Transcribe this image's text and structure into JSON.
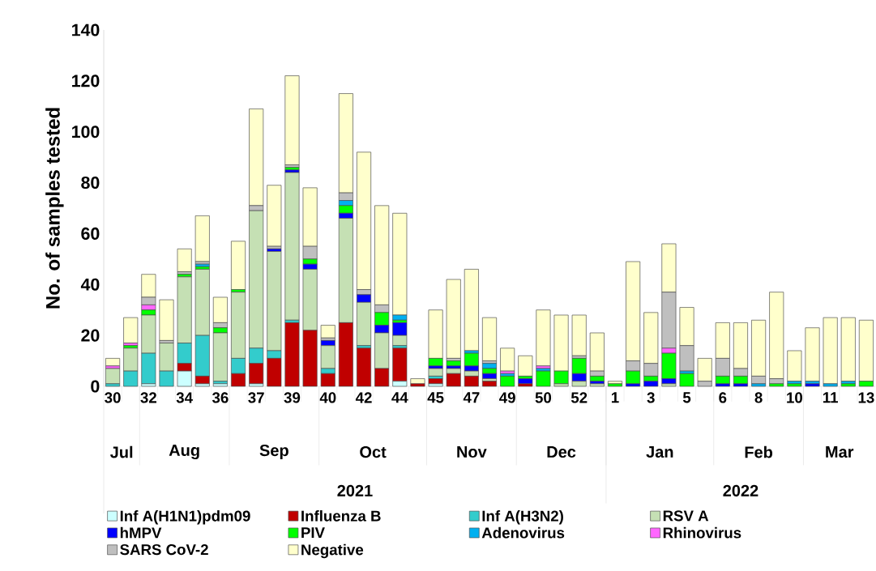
{
  "chart_data": {
    "type": "bar",
    "stacked": true,
    "ylabel": "No. of samples tested",
    "categories": [
      "30",
      null,
      "32",
      null,
      "34",
      null,
      "36",
      null,
      "37",
      null,
      "39",
      null,
      "40",
      null,
      "42",
      null,
      "44",
      null,
      "45",
      null,
      "47",
      null,
      "49",
      null,
      "50",
      null,
      "52",
      null,
      "1",
      null,
      "3",
      null,
      "5",
      null,
      "6",
      null,
      "8",
      null,
      "10",
      null,
      "11",
      null,
      "13"
    ],
    "ylim": [
      0,
      140
    ],
    "yticks": [
      0,
      20,
      40,
      60,
      80,
      100,
      120,
      140
    ],
    "legend": "bottom",
    "annotations": [
      "Jul",
      "Aug",
      "Sep",
      "Oct",
      "Nov",
      "Dec",
      "Jan",
      "Feb",
      "Mar",
      "2021",
      "2022"
    ],
    "series": [
      {
        "name": "Inf A(H1N1)pdm09",
        "color": "#ccffff",
        "values": [
          0,
          0,
          1,
          0,
          6,
          1,
          1,
          0,
          1,
          0,
          0,
          0,
          0,
          0,
          0,
          0,
          2,
          0,
          1,
          0,
          0,
          0,
          0,
          0,
          0,
          0,
          0,
          0,
          0,
          0,
          0,
          0,
          0,
          0,
          0,
          0,
          0,
          0,
          0,
          0,
          0,
          0,
          0
        ]
      },
      {
        "name": "Influenza B",
        "color": "#c00000",
        "values": [
          0,
          0,
          0,
          0,
          3,
          3,
          0,
          5,
          8,
          11,
          25,
          22,
          5,
          25,
          15,
          7,
          13,
          1,
          2,
          5,
          4,
          2,
          0,
          1,
          0,
          0,
          0,
          0,
          0,
          0,
          0,
          0,
          0,
          0,
          0,
          0,
          0,
          0,
          0,
          0,
          0,
          0,
          0
        ]
      },
      {
        "name": "Inf A(H3N2)",
        "color": "#33cccc",
        "values": [
          1,
          6,
          12,
          6,
          8,
          16,
          1,
          6,
          6,
          3,
          1,
          0,
          2,
          0,
          1,
          0,
          1,
          0,
          1,
          0,
          0,
          0,
          0,
          0,
          0,
          0,
          0,
          0,
          0,
          0,
          0,
          0,
          0,
          0,
          0,
          0,
          0,
          0,
          0,
          0,
          0,
          0,
          0
        ]
      },
      {
        "name": "RSV A",
        "color": "#c5e0b4",
        "values": [
          6,
          9,
          15,
          11,
          26,
          26,
          19,
          26,
          54,
          39,
          58,
          24,
          9,
          41,
          17,
          14,
          4,
          0,
          3,
          2,
          2,
          1,
          0,
          0,
          0,
          1,
          2,
          1,
          0,
          0,
          0,
          1,
          0,
          0,
          0,
          0,
          0,
          0,
          0,
          0,
          0,
          0,
          0
        ]
      },
      {
        "name": "hMPV",
        "color": "#0000ff",
        "values": [
          0,
          0,
          0,
          0,
          0,
          0,
          0,
          0,
          0,
          1,
          1,
          2,
          2,
          2,
          3,
          3,
          5,
          0,
          1,
          1,
          2,
          2,
          0,
          2,
          0,
          0,
          3,
          1,
          0,
          1,
          2,
          2,
          0,
          0,
          1,
          1,
          0,
          0,
          0,
          1,
          0,
          0,
          0
        ]
      },
      {
        "name": "PIV",
        "color": "#00ff00",
        "values": [
          0,
          1,
          2,
          0,
          1,
          1,
          2,
          1,
          0,
          0,
          1,
          2,
          0,
          3,
          0,
          5,
          1,
          0,
          3,
          2,
          5,
          2,
          4,
          1,
          6,
          5,
          6,
          2,
          1,
          5,
          2,
          10,
          5,
          0,
          3,
          3,
          0,
          1,
          1,
          0,
          0,
          1,
          2
        ]
      },
      {
        "name": "Adenovirus",
        "color": "#00b0f0",
        "values": [
          0,
          0,
          0,
          0,
          0,
          1,
          0,
          0,
          0,
          0,
          0,
          0,
          0,
          2,
          0,
          0,
          2,
          0,
          0,
          0,
          1,
          2,
          1,
          0,
          1,
          0,
          0,
          0,
          0,
          0,
          0,
          0,
          1,
          0,
          0,
          0,
          1,
          0,
          1,
          1,
          1,
          1,
          0
        ]
      },
      {
        "name": "Rhinovirus",
        "color": "#ff66ff",
        "values": [
          1,
          1,
          2,
          0,
          0,
          0,
          0,
          0,
          0,
          0,
          0,
          0,
          0,
          0,
          0,
          0,
          0,
          0,
          0,
          0,
          0,
          0,
          1,
          0,
          1,
          0,
          0,
          0,
          0,
          0,
          0,
          2,
          0,
          0,
          0,
          0,
          0,
          0,
          0,
          0,
          0,
          0,
          0
        ]
      },
      {
        "name": "SARS CoV-2",
        "color": "#bfbfbf",
        "values": [
          0,
          0,
          3,
          1,
          1,
          1,
          2,
          0,
          2,
          1,
          1,
          5,
          1,
          3,
          2,
          3,
          0,
          0,
          0,
          1,
          0,
          1,
          0,
          0,
          0,
          0,
          1,
          2,
          0,
          4,
          5,
          22,
          10,
          2,
          7,
          3,
          3,
          2,
          0,
          0,
          0,
          0,
          0
        ]
      },
      {
        "name": "Negative",
        "color": "#ffffcc",
        "values": [
          3,
          10,
          9,
          16,
          9,
          18,
          10,
          19,
          38,
          24,
          35,
          23,
          5,
          39,
          54,
          39,
          40,
          2,
          19,
          31,
          32,
          17,
          9,
          8,
          22,
          22,
          16,
          15,
          1,
          39,
          20,
          19,
          15,
          9,
          14,
          18,
          22,
          34,
          12,
          21,
          26,
          25,
          24
        ]
      }
    ]
  }
}
